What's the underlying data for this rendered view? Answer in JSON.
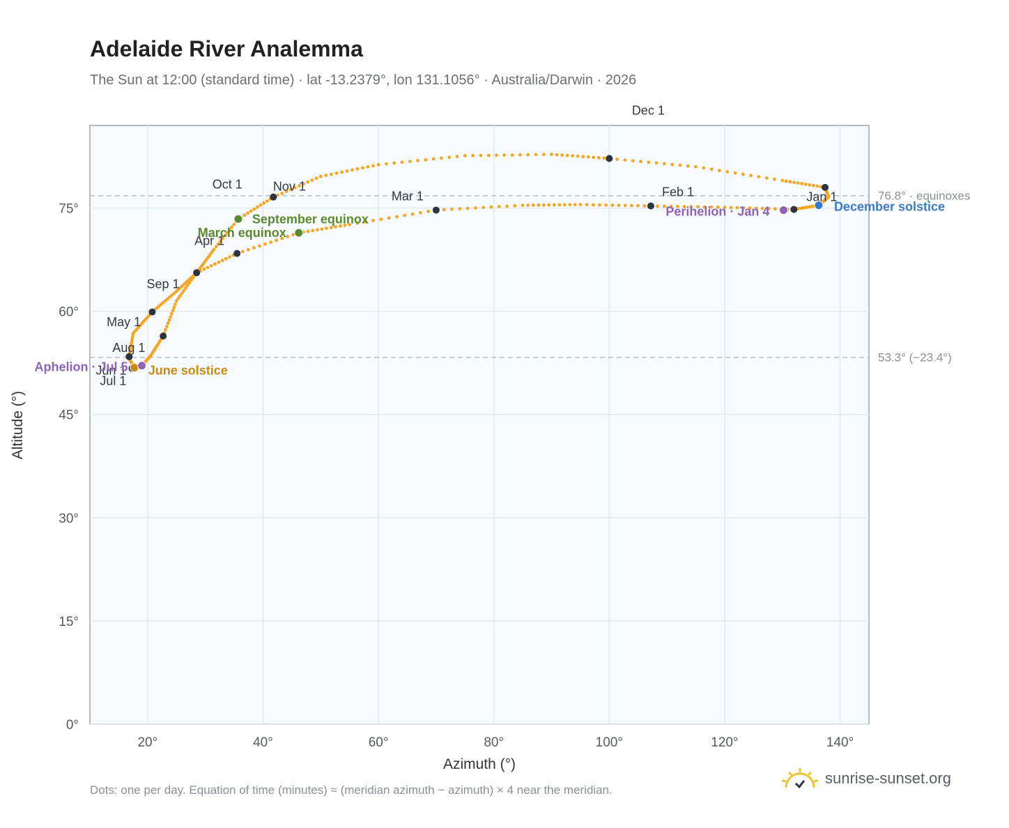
{
  "title": "Adelaide River Analemma",
  "subtitle": "The Sun at 12:00 (standard time) · lat -13.2379°, lon 131.1056° · Australia/Darwin · 2026",
  "footnote": "Dots: one per day. Equation of time (minutes) ≈ (meridian azimuth − azimuth) × 4 near the meridian.",
  "brand": {
    "name": "sunrise-sunset.org",
    "icon": "sun-logo-icon"
  },
  "colors": {
    "curve": "#f5a623",
    "month_marker": "#2d3440",
    "equinox": "#5b8a2e",
    "june_solstice": "#c98a10",
    "december_solstice": "#3a7bc8",
    "perihelion_aphelion": "#8e63b8",
    "plot_bg": "#f8fbfe",
    "grid": "#e3e8ee",
    "reference_line": "#b9bec6"
  },
  "chart_data": {
    "type": "scatter",
    "xlabel": "Azimuth (°)",
    "ylabel": "Altitude (°)",
    "xlim": [
      10,
      145
    ],
    "ylim": [
      0,
      87
    ],
    "x_ticks": [
      20,
      40,
      60,
      80,
      100,
      120,
      140
    ],
    "x_tick_labels": [
      "20°",
      "40°",
      "60°",
      "80°",
      "100°",
      "120°",
      "140°"
    ],
    "y_ticks": [
      0,
      15,
      30,
      45,
      60,
      75
    ],
    "y_tick_labels": [
      "0°",
      "15°",
      "30°",
      "45°",
      "60°",
      "75°"
    ],
    "grid": true,
    "reference_lines": [
      {
        "altitude": 76.8,
        "label": "76.8° · equinoxes"
      },
      {
        "altitude": 53.3,
        "label": "53.3° (−23.4°)"
      }
    ],
    "curve_path": [
      {
        "x": 132.0,
        "y": 74.8
      },
      {
        "x": 120.0,
        "y": 75.1
      },
      {
        "x": 107.2,
        "y": 75.3
      },
      {
        "x": 95.0,
        "y": 75.5
      },
      {
        "x": 85.0,
        "y": 75.4
      },
      {
        "x": 70.0,
        "y": 74.7
      },
      {
        "x": 55.0,
        "y": 72.6
      },
      {
        "x": 46.2,
        "y": 71.4
      },
      {
        "x": 35.5,
        "y": 68.4
      },
      {
        "x": 28.5,
        "y": 65.6
      },
      {
        "x": 25.0,
        "y": 61.5
      },
      {
        "x": 22.7,
        "y": 56.4
      },
      {
        "x": 20.5,
        "y": 53.5
      },
      {
        "x": 19.0,
        "y": 52.1
      },
      {
        "x": 17.7,
        "y": 51.9
      },
      {
        "x": 17.0,
        "y": 52.8
      },
      {
        "x": 16.8,
        "y": 53.4
      },
      {
        "x": 17.5,
        "y": 56.8
      },
      {
        "x": 20.8,
        "y": 59.9
      },
      {
        "x": 25.0,
        "y": 62.9
      },
      {
        "x": 28.5,
        "y": 65.6
      },
      {
        "x": 31.5,
        "y": 69.0
      },
      {
        "x": 35.7,
        "y": 73.4
      },
      {
        "x": 41.8,
        "y": 76.6
      },
      {
        "x": 50.0,
        "y": 79.6
      },
      {
        "x": 60.0,
        "y": 81.3
      },
      {
        "x": 75.0,
        "y": 82.6
      },
      {
        "x": 90.0,
        "y": 82.8
      },
      {
        "x": 100.0,
        "y": 82.2
      },
      {
        "x": 115.0,
        "y": 81.0
      },
      {
        "x": 130.0,
        "y": 79.0
      },
      {
        "x": 137.4,
        "y": 78.0
      },
      {
        "x": 138.0,
        "y": 76.6
      },
      {
        "x": 136.3,
        "y": 75.4
      },
      {
        "x": 132.0,
        "y": 74.8
      }
    ],
    "month_markers": [
      {
        "label": "Jan 1",
        "x": 132.0,
        "y": 74.8
      },
      {
        "label": "Feb 1",
        "x": 107.2,
        "y": 75.3
      },
      {
        "label": "Mar 1",
        "x": 70.0,
        "y": 74.7
      },
      {
        "label": "Apr 1",
        "x": 35.5,
        "y": 68.4
      },
      {
        "label": "May 1",
        "x": 22.7,
        "y": 56.4
      },
      {
        "label": "Jun 1",
        "x": 17.3,
        "y": 51.7
      },
      {
        "label": "Jul 1",
        "x": 17.3,
        "y": 51.7
      },
      {
        "label": "Aug 1",
        "x": 16.8,
        "y": 53.4
      },
      {
        "label": "Sep 1",
        "x": 20.8,
        "y": 59.9
      },
      {
        "label": "Oct 1",
        "x": 28.5,
        "y": 65.6
      },
      {
        "label": "Nov 1",
        "x": 41.8,
        "y": 76.6
      },
      {
        "label": "Dec 1",
        "x": 100.0,
        "y": 82.2
      }
    ],
    "extra_markers": [
      {
        "x": 137.4,
        "y": 78.0
      }
    ],
    "events": [
      {
        "label": "March equinox",
        "x": 46.2,
        "y": 71.4,
        "kind": "equinox"
      },
      {
        "label": "September equinox",
        "x": 35.7,
        "y": 73.4,
        "kind": "equinox"
      },
      {
        "label": "June solstice",
        "x": 17.7,
        "y": 51.8,
        "kind": "june_solstice"
      },
      {
        "label": "December solstice",
        "x": 136.3,
        "y": 75.4,
        "kind": "december_solstice"
      },
      {
        "label": "Perihelion · Jan 4",
        "x": 130.2,
        "y": 74.7,
        "kind": "perihelion_aphelion"
      },
      {
        "label": "Aphelion · Jul 5",
        "x": 19.0,
        "y": 52.1,
        "kind": "perihelion_aphelion"
      }
    ]
  }
}
